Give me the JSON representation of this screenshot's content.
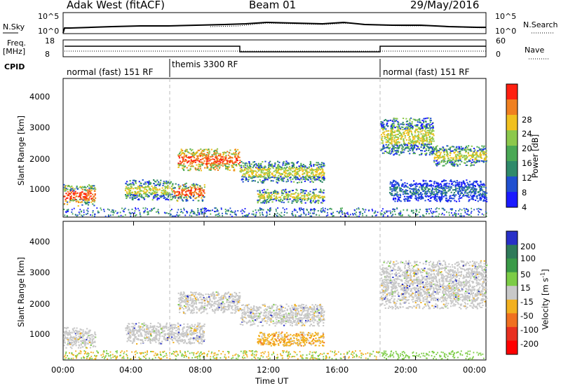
{
  "header": {
    "title": "Adak West (fitACF)",
    "beam": "Beam 01",
    "date": "29/May/2016"
  },
  "top_panel": {
    "left_label": "N.Sky",
    "right_label": "N.Search",
    "left_ticks": [
      "10^5",
      "10^0"
    ],
    "right_ticks": [
      "10^5",
      "10^0"
    ]
  },
  "freq_panel": {
    "left_label_1": "Freq.",
    "left_label_2": "[MHz]",
    "right_label": "Nave",
    "left_ticks": [
      "18",
      "8"
    ],
    "right_ticks": [
      "60",
      "0"
    ]
  },
  "cpid": {
    "label": "CPID",
    "modes": [
      "normal (fast) 151 RF",
      "themis 3300 RF",
      "normal (fast) 151 RF"
    ]
  },
  "power_panel": {
    "ylabel": "Slant Range [km]",
    "yticks": [
      "1000",
      "2000",
      "3000",
      "4000"
    ],
    "colorbar_label": "Power [dB]",
    "colorbar_ticks": [
      "4",
      "8",
      "12",
      "16",
      "20",
      "24",
      "28"
    ]
  },
  "velocity_panel": {
    "ylabel": "Slant Range [km]",
    "yticks": [
      "1000",
      "2000",
      "3000",
      "4000"
    ],
    "colorbar_label": "Velocity [m s",
    "colorbar_label_sup": "-1",
    "colorbar_label_end": "]",
    "colorbar_ticks": [
      "200",
      "100",
      "50",
      "15",
      "-15",
      "-50",
      "-100",
      "-200"
    ]
  },
  "xaxis": {
    "ticks": [
      "00:00",
      "04:00",
      "08:00",
      "12:00",
      "16:00",
      "20:00",
      "00:00"
    ],
    "label": "Time UT"
  },
  "colors": {
    "power_scale": [
      "#1a1aff",
      "#2050d0",
      "#2f8a6a",
      "#4aa855",
      "#8cc84c",
      "#f0c020",
      "#f08020",
      "#ff2010"
    ],
    "velocity_scale": [
      "#2830c8",
      "#2f7a5a",
      "#3a9a48",
      "#7ccc46",
      "#c8c8c8",
      "#f2b020",
      "#f07020",
      "#e83020",
      "#ff0000"
    ]
  },
  "chart_data": [
    {
      "type": "heatmap",
      "title": "Power",
      "x_range_hours": [
        0,
        24
      ],
      "y_range_km": [
        180,
        4650
      ],
      "regions": [
        {
          "t": [
            0.0,
            1.8
          ],
          "range": [
            560,
            1250
          ],
          "level": "high"
        },
        {
          "t": [
            3.5,
            6.2
          ],
          "range": [
            750,
            1400
          ],
          "level": "medium"
        },
        {
          "t": [
            6.2,
            8.0
          ],
          "range": [
            720,
            1300
          ],
          "level": "high"
        },
        {
          "t": [
            6.5,
            10.0
          ],
          "range": [
            1700,
            2400
          ],
          "level": "very-high"
        },
        {
          "t": [
            10.0,
            14.8
          ],
          "range": [
            1300,
            2000
          ],
          "level": "medium"
        },
        {
          "t": [
            11.0,
            14.8
          ],
          "range": [
            650,
            1100
          ],
          "level": "medium"
        },
        {
          "t": [
            18.0,
            21.0
          ],
          "range": [
            2200,
            3400
          ],
          "level": "medium"
        },
        {
          "t": [
            21.0,
            24.0
          ],
          "range": [
            1850,
            2500
          ],
          "level": "medium"
        },
        {
          "t": [
            18.5,
            24.0
          ],
          "range": [
            700,
            1400
          ],
          "level": "low"
        }
      ]
    },
    {
      "type": "heatmap",
      "title": "Velocity",
      "x_range_hours": [
        0,
        24
      ],
      "y_range_km": [
        180,
        4650
      ],
      "regions": [
        {
          "t": [
            0.0,
            1.8
          ],
          "range": [
            560,
            1250
          ],
          "class": "ground"
        },
        {
          "t": [
            3.5,
            8.0
          ],
          "range": [
            720,
            1400
          ],
          "class": "ground"
        },
        {
          "t": [
            6.5,
            10.0
          ],
          "range": [
            1700,
            2400
          ],
          "class": "ground"
        },
        {
          "t": [
            10.0,
            14.8
          ],
          "range": [
            1300,
            2000
          ],
          "class": "ground"
        },
        {
          "t": [
            11.0,
            14.8
          ],
          "range": [
            650,
            1100
          ],
          "class": "negative"
        },
        {
          "t": [
            18.0,
            24.0
          ],
          "range": [
            1850,
            3400
          ],
          "class": "ground"
        }
      ]
    }
  ]
}
